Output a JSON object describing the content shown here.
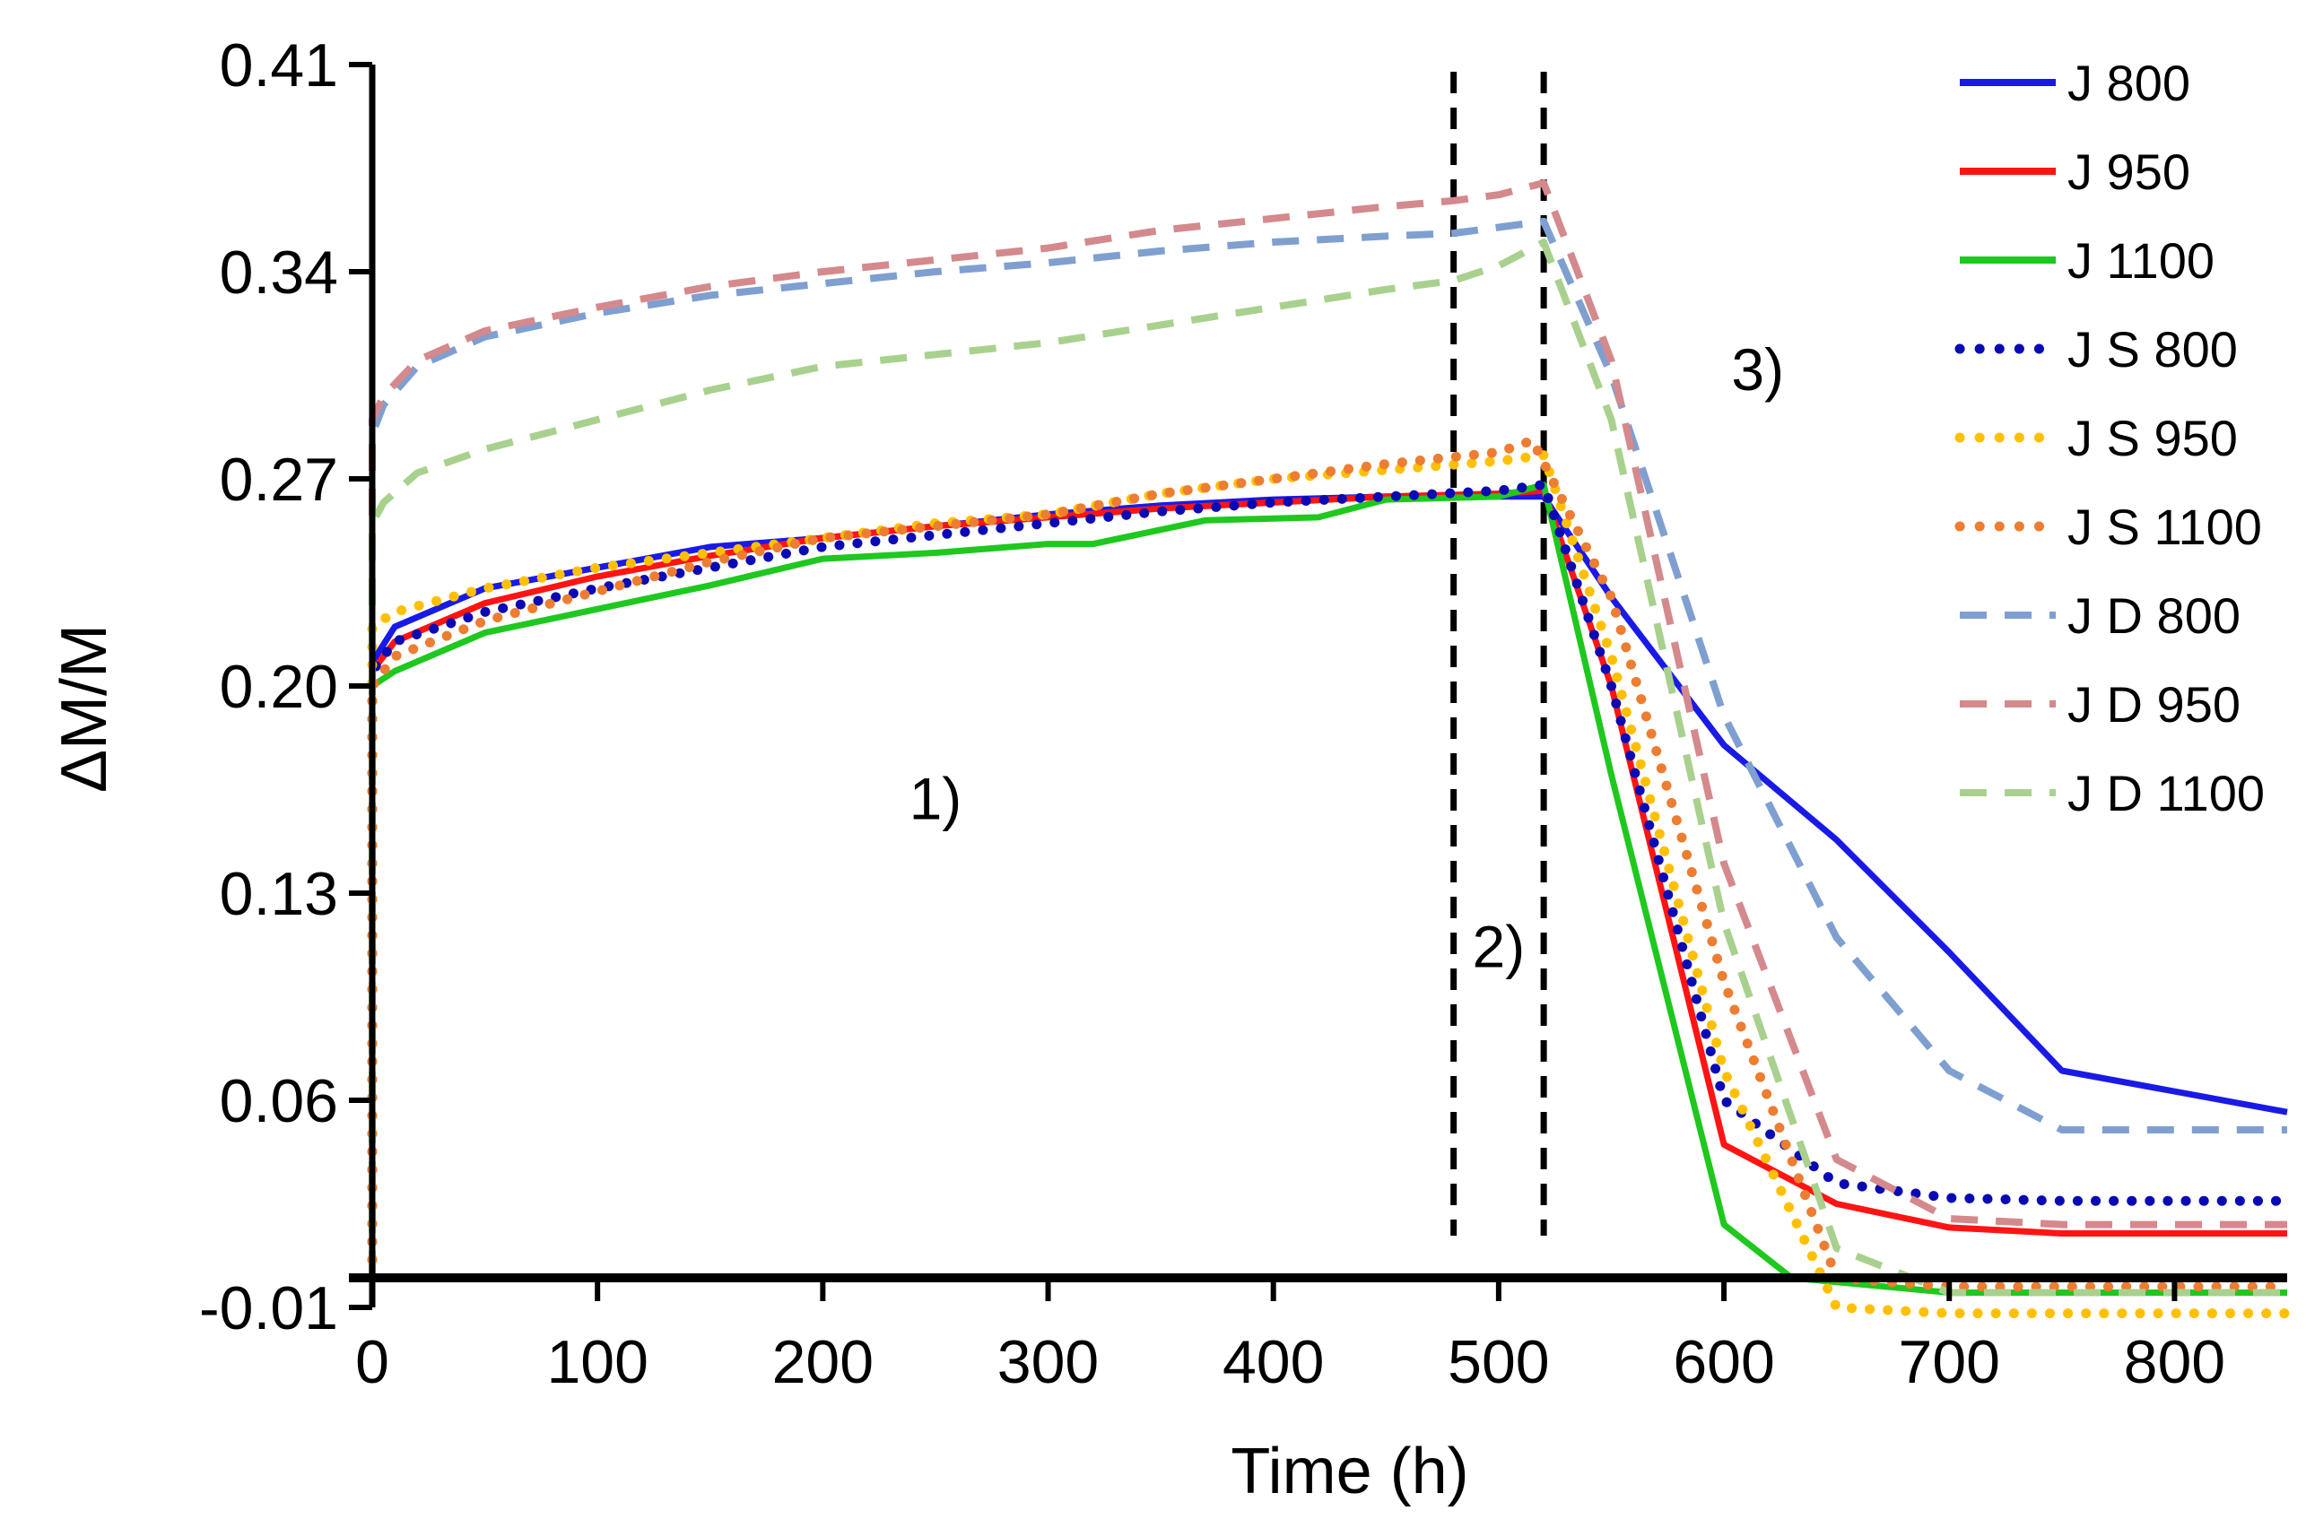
{
  "chart_data": {
    "type": "line",
    "title": "",
    "xlabel": "Time (h)",
    "ylabel": "ΔM/M",
    "xlim": [
      0,
      850
    ],
    "ylim": [
      -0.01,
      0.41
    ],
    "xticks": [
      0,
      100,
      200,
      300,
      400,
      500,
      600,
      700,
      800
    ],
    "xtick_labels": [
      "0",
      "100",
      "200",
      "300",
      "400",
      "500",
      "600",
      "700",
      "800"
    ],
    "yticks": [
      0.41,
      0.34,
      0.27,
      0.2,
      0.13,
      0.06,
      -0.01
    ],
    "ytick_labels": [
      "0.41",
      "0.34",
      "0.27",
      "0.20",
      "0.13",
      "0.06",
      "-0.01"
    ],
    "grid": false,
    "legend_position": "top-right",
    "reference_lines": [
      {
        "axis": "x",
        "value": 480,
        "style": "dashed",
        "color": "#000000"
      },
      {
        "axis": "x",
        "value": 520,
        "style": "dashed",
        "color": "#000000"
      }
    ],
    "annotations": [
      {
        "text": "1)",
        "x": 250,
        "y": 0.155
      },
      {
        "text": "2)",
        "x": 500,
        "y": 0.105
      },
      {
        "text": "3)",
        "x": 615,
        "y": 0.3
      }
    ],
    "series": [
      {
        "name": "J 800",
        "color": "#1a1ae6",
        "style": "solid",
        "x": [
          0,
          0,
          10,
          50,
          100,
          150,
          200,
          250,
          300,
          350,
          400,
          450,
          500,
          520,
          550,
          600,
          650,
          700,
          750,
          850
        ],
        "y": [
          0,
          0.208,
          0.22,
          0.233,
          0.24,
          0.247,
          0.25,
          0.254,
          0.258,
          0.261,
          0.263,
          0.264,
          0.264,
          0.264,
          0.23,
          0.18,
          0.148,
          0.11,
          0.07,
          0.056
        ]
      },
      {
        "name": "J 950",
        "color": "#ff1414",
        "style": "solid",
        "x": [
          0,
          0,
          10,
          50,
          100,
          150,
          200,
          250,
          300,
          350,
          400,
          450,
          500,
          520,
          550,
          600,
          650,
          700,
          750,
          850
        ],
        "y": [
          0,
          0.205,
          0.215,
          0.228,
          0.237,
          0.244,
          0.25,
          0.254,
          0.257,
          0.26,
          0.262,
          0.264,
          0.265,
          0.266,
          0.2,
          0.045,
          0.025,
          0.017,
          0.015,
          0.015
        ]
      },
      {
        "name": "J 1100",
        "color": "#1ec81e",
        "style": "solid",
        "x": [
          0,
          0,
          10,
          50,
          100,
          150,
          200,
          250,
          300,
          320,
          370,
          420,
          450,
          500,
          520,
          550,
          600,
          630,
          700,
          750,
          850
        ],
        "y": [
          0,
          0.2,
          0.205,
          0.218,
          0.226,
          0.234,
          0.243,
          0.245,
          0.248,
          0.248,
          0.256,
          0.257,
          0.263,
          0.264,
          0.268,
          0.17,
          0.018,
          0.0,
          -0.005,
          -0.005,
          -0.005
        ]
      },
      {
        "name": "J S 800",
        "color": "#0a0ab4",
        "style": "dotted",
        "x": [
          0,
          0,
          10,
          50,
          100,
          150,
          200,
          250,
          300,
          350,
          400,
          450,
          500,
          520,
          550,
          600,
          650,
          700,
          750,
          850
        ],
        "y": [
          0,
          0.205,
          0.215,
          0.225,
          0.233,
          0.24,
          0.247,
          0.251,
          0.255,
          0.259,
          0.262,
          0.264,
          0.266,
          0.268,
          0.2,
          0.06,
          0.032,
          0.027,
          0.026,
          0.026
        ]
      },
      {
        "name": "J S 950",
        "color": "#ffc000",
        "style": "dotted",
        "x": [
          0,
          0,
          10,
          50,
          100,
          150,
          200,
          250,
          300,
          350,
          400,
          450,
          500,
          520,
          550,
          600,
          650,
          700,
          750,
          850
        ],
        "y": [
          0,
          0.22,
          0.225,
          0.233,
          0.24,
          0.245,
          0.25,
          0.255,
          0.258,
          0.265,
          0.27,
          0.273,
          0.276,
          0.278,
          0.21,
          0.07,
          -0.01,
          -0.012,
          -0.012,
          -0.012
        ]
      },
      {
        "name": "J S 1100",
        "color": "#ed7d31",
        "style": "dotted",
        "x": [
          0,
          0,
          10,
          50,
          100,
          150,
          200,
          250,
          300,
          350,
          400,
          450,
          500,
          515,
          550,
          600,
          650,
          700,
          750,
          850
        ],
        "y": [
          0,
          0.2,
          0.21,
          0.222,
          0.232,
          0.242,
          0.25,
          0.254,
          0.258,
          0.265,
          0.27,
          0.275,
          0.279,
          0.283,
          0.23,
          0.1,
          0.0,
          -0.003,
          -0.003,
          -0.003
        ]
      },
      {
        "name": "J D 800",
        "color": "#7f9fd0",
        "style": "dashed",
        "x": [
          0,
          0,
          5,
          20,
          50,
          100,
          150,
          200,
          250,
          300,
          350,
          400,
          450,
          480,
          500,
          520,
          550,
          600,
          650,
          700,
          750,
          850
        ],
        "y": [
          0,
          0.285,
          0.295,
          0.308,
          0.318,
          0.326,
          0.332,
          0.336,
          0.34,
          0.343,
          0.347,
          0.35,
          0.352,
          0.353,
          0.355,
          0.357,
          0.305,
          0.19,
          0.115,
          0.07,
          0.05,
          0.05
        ]
      },
      {
        "name": "J D 950",
        "color": "#d4898c",
        "style": "dashed",
        "x": [
          0,
          0,
          5,
          20,
          50,
          100,
          150,
          200,
          250,
          300,
          350,
          400,
          450,
          480,
          500,
          520,
          550,
          600,
          650,
          700,
          750,
          850
        ],
        "y": [
          0,
          0.29,
          0.298,
          0.31,
          0.32,
          0.328,
          0.335,
          0.34,
          0.344,
          0.348,
          0.354,
          0.358,
          0.362,
          0.364,
          0.366,
          0.37,
          0.31,
          0.14,
          0.04,
          0.02,
          0.018,
          0.018
        ]
      },
      {
        "name": "J D 1100",
        "color": "#a9d18e",
        "style": "dashed",
        "x": [
          0,
          0,
          5,
          20,
          50,
          100,
          150,
          200,
          250,
          300,
          350,
          400,
          450,
          480,
          500,
          520,
          550,
          600,
          650,
          700,
          750,
          850
        ],
        "y": [
          0,
          0.255,
          0.262,
          0.272,
          0.28,
          0.29,
          0.3,
          0.308,
          0.312,
          0.316,
          0.322,
          0.328,
          0.334,
          0.337,
          0.342,
          0.35,
          0.29,
          0.12,
          0.01,
          -0.005,
          -0.005,
          -0.005
        ]
      }
    ]
  }
}
